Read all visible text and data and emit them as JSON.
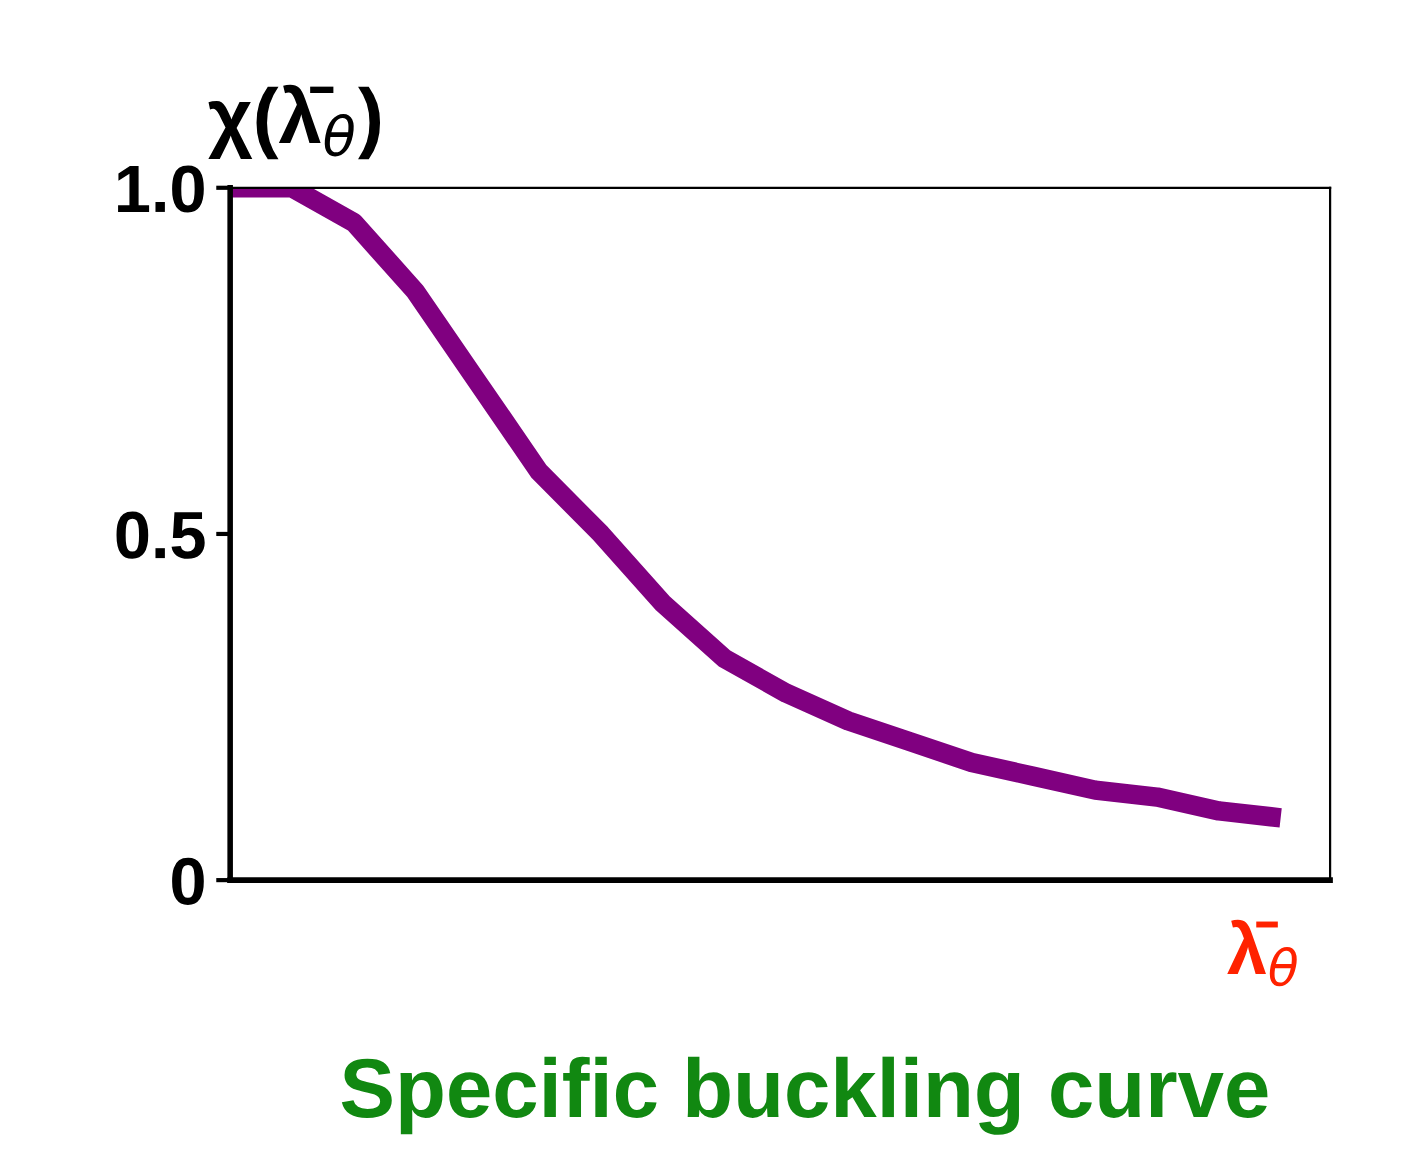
{
  "chart_data": {
    "type": "line",
    "ylabel": "χ(λ̄$_{θ}$)",
    "xlabel": "λ̄$_{θ}$",
    "annotations": [
      "Specific buckling curve"
    ],
    "categories": [
      null,
      null,
      null,
      null,
      null,
      null,
      null,
      null,
      null,
      null,
      null,
      null,
      null,
      null,
      null,
      null,
      null,
      null
    ],
    "series": [
      {
        "color": "#800080",
        "values": [
          1.0,
          1.0,
          0.95,
          0.85,
          0.72,
          0.59,
          0.5,
          0.4,
          0.32,
          0.27,
          0.23,
          0.2,
          0.17,
          0.15,
          0.13,
          0.12,
          0.1,
          0.09
        ]
      }
    ],
    "ylim": [
      0,
      1.0
    ],
    "yticks": [
      0,
      0.5,
      {
        "value": 1,
        "label": "1.0"
      }
    ],
    "grid": false,
    "legend": false,
    "marker": "none",
    "line_style": "solid"
  }
}
